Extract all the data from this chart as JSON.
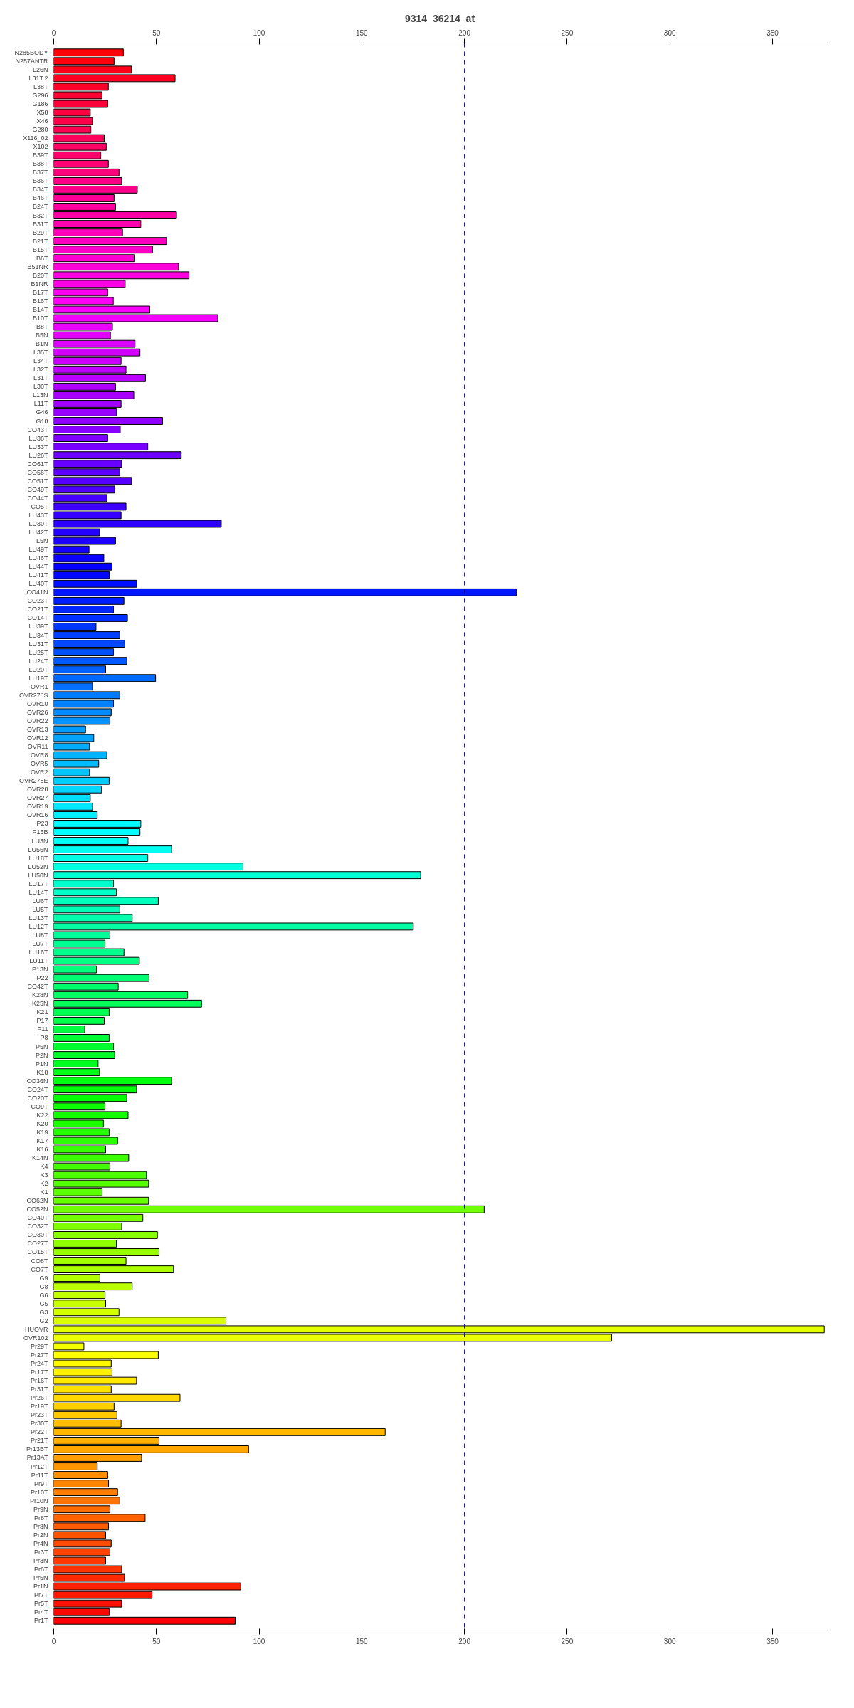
{
  "chart_data": {
    "type": "bar",
    "title": "9314_36214_at",
    "orientation": "horizontal",
    "categories": [
      "N285BODY",
      "N257ANTR",
      "L26N",
      "L31T.2",
      "L38T",
      "G296",
      "G186",
      "X58",
      "X46",
      "G280",
      "X116_02",
      "X102",
      "B39T",
      "B38T",
      "B37T",
      "B36T",
      "B34T",
      "B46T",
      "B24T",
      "B32T",
      "B31T",
      "B29T",
      "B21T",
      "B15T",
      "B6T",
      "B51NR",
      "B20T",
      "B1NR",
      "B17T",
      "B16T",
      "B14T",
      "B10T",
      "B8T",
      "B5N",
      "B1N",
      "L35T",
      "L34T",
      "L32T",
      "L31T",
      "L30T",
      "L13N",
      "L11T",
      "G46",
      "G18",
      "CO43T",
      "LU36T",
      "LU33T",
      "LU26T",
      "CO61T",
      "CO56T",
      "CO51T",
      "CO49T",
      "CO44T",
      "CO5T",
      "LU43T",
      "LU30T",
      "LU42T",
      "L5N",
      "LU49T",
      "LU46T",
      "LU44T",
      "LU41T",
      "LU40T",
      "CO41N",
      "CO23T",
      "CO21T",
      "CO14T",
      "LU39T",
      "LU34T",
      "LU31T",
      "LU25T",
      "LU24T",
      "LU20T",
      "LU19T",
      "OVR1",
      "OVR278S",
      "OVR10",
      "OVR26",
      "OVR22",
      "OVR13",
      "OVR12",
      "OVR11",
      "OVR8",
      "OVR5",
      "OVR2",
      "OVR278E",
      "OVR28",
      "OVR27",
      "OVR19",
      "OVR16",
      "P23",
      "P16B",
      "LU3N",
      "LU55N",
      "LU18T",
      "LU52N",
      "LU50N",
      "LU17T",
      "LU14T",
      "LU6T",
      "LU5T",
      "LU13T",
      "LU12T",
      "LU8T",
      "LU7T",
      "LU16T",
      "LU11T",
      "P13N",
      "P22",
      "CO42T",
      "K28N",
      "K25N",
      "K21",
      "P17",
      "P11",
      "P8",
      "P5N",
      "P2N",
      "P1N",
      "K18",
      "CO36N",
      "CO24T",
      "CO20T",
      "CO9T",
      "K22",
      "K20",
      "K19",
      "K17",
      "K16",
      "K14N",
      "K4",
      "K3",
      "K2",
      "K1",
      "CO62N",
      "CO52N",
      "CO40T",
      "CO32T",
      "CO30T",
      "CO27T",
      "CO15T",
      "CO8T",
      "CO7T",
      "G9",
      "G8",
      "G6",
      "G5",
      "G3",
      "G2",
      "HUOVR",
      "OVR102",
      "Pr29T",
      "Pr27T",
      "Pr24T",
      "Pr17T",
      "Pr16T",
      "Pr31T",
      "Pr26T",
      "Pr19T",
      "Pr23T",
      "Pr30T",
      "Pr22T",
      "Pr21T",
      "Pr13BT",
      "Pr13AT",
      "Pr12T",
      "Pr11T",
      "Pr9T",
      "Pr10T",
      "Pr10N",
      "Pr9N",
      "Pr8T",
      "Pr8N",
      "Pr2N",
      "Pr4N",
      "Pr3T",
      "Pr3N",
      "Pr6T",
      "Pr5N",
      "Pr1N",
      "Pr7T",
      "Pr5T",
      "Pr4T",
      "Pr1T"
    ],
    "values": [
      33.9,
      29.4,
      37.9,
      59.1,
      26.6,
      23.5,
      26.3,
      17.8,
      18.8,
      18.1,
      24.6,
      25.6,
      22.9,
      26.6,
      31.8,
      33.1,
      40.7,
      29.4,
      30.1,
      59.8,
      42.4,
      33.5,
      54.9,
      48.1,
      39.2,
      60.8,
      65.9,
      34.8,
      26.3,
      29.0,
      46.8,
      79.9,
      28.6,
      27.6,
      39.6,
      42.0,
      32.8,
      35.2,
      44.7,
      30.1,
      39.0,
      32.8,
      30.5,
      53.0,
      32.4,
      26.3,
      45.8,
      62.1,
      33.1,
      32.2,
      37.9,
      29.7,
      25.9,
      35.2,
      32.8,
      81.6,
      22.3,
      30.1,
      17.2,
      24.4,
      28.4,
      27.0,
      40.3,
      225.2,
      34.2,
      29.1,
      35.9,
      20.6,
      32.2,
      34.6,
      29.1,
      35.6,
      25.3,
      49.6,
      18.9,
      32.2,
      29.1,
      28.0,
      27.4,
      15.5,
      19.5,
      17.4,
      25.9,
      21.9,
      17.4,
      27.0,
      23.3,
      17.8,
      18.9,
      21.2,
      42.4,
      42.0,
      36.2,
      57.4,
      45.8,
      92.2,
      178.7,
      29.1,
      30.5,
      50.9,
      32.2,
      38.2,
      175.1,
      27.4,
      25.0,
      34.2,
      41.7,
      20.8,
      46.4,
      31.4,
      65.2,
      72.0,
      27.0,
      24.6,
      15.1,
      27.0,
      29.1,
      29.7,
      21.6,
      22.3,
      57.4,
      40.3,
      35.6,
      25.0,
      36.2,
      24.2,
      27.0,
      31.1,
      25.3,
      36.5,
      27.4,
      45.1,
      46.2,
      23.6,
      46.2,
      209.6,
      43.4,
      33.1,
      50.5,
      30.5,
      51.3,
      35.2,
      58.3,
      22.5,
      38.2,
      25.0,
      25.3,
      31.8,
      83.9,
      375.2,
      271.7,
      14.7,
      50.9,
      28.0,
      28.4,
      40.3,
      28.0,
      61.5,
      29.4,
      30.8,
      32.8,
      161.4,
      51.3,
      94.9,
      42.8,
      21.2,
      26.3,
      26.7,
      31.1,
      32.2,
      27.4,
      44.5,
      26.7,
      25.3,
      28.0,
      27.4,
      25.3,
      33.1,
      34.5,
      91.1,
      47.9,
      33.1,
      27.0,
      88.4
    ],
    "colors": [
      "#ff0008",
      "#ff0011",
      "#ff0019",
      "#ff0021",
      "#ff002a",
      "#ff0032",
      "#ff003a",
      "#ff0043",
      "#ff004b",
      "#ff0053",
      "#ff005b",
      "#ff0064",
      "#ff006c",
      "#ff0074",
      "#ff007d",
      "#ff0085",
      "#ff008d",
      "#ff0096",
      "#ff009e",
      "#ff00a6",
      "#ff00af",
      "#ff00b7",
      "#ff00bf",
      "#ff00c8",
      "#ff00d0",
      "#ff00d8",
      "#ff00e1",
      "#ff00e9",
      "#ff00f1",
      "#ff00f9",
      "#fc00ff",
      "#f400ff",
      "#ec00ff",
      "#e300ff",
      "#db00ff",
      "#d300ff",
      "#ca00ff",
      "#c200ff",
      "#ba00ff",
      "#b100ff",
      "#a900ff",
      "#a100ff",
      "#9800ff",
      "#9000ff",
      "#8800ff",
      "#8000ff",
      "#7700ff",
      "#6f00ff",
      "#6700ff",
      "#5e00ff",
      "#5600ff",
      "#4e00ff",
      "#4500ff",
      "#3d00ff",
      "#3500ff",
      "#2c00ff",
      "#2400ff",
      "#1c00ff",
      "#1300ff",
      "#0b00ff",
      "#0300ff",
      "#0006ff",
      "#000eff",
      "#0016ff",
      "#001eff",
      "#0027ff",
      "#002fff",
      "#0037ff",
      "#0040ff",
      "#0048ff",
      "#0050ff",
      "#0059ff",
      "#0061ff",
      "#0069ff",
      "#0072ff",
      "#007aff",
      "#0082ff",
      "#008bff",
      "#0093ff",
      "#009bff",
      "#00a4ff",
      "#00acff",
      "#00b4ff",
      "#00bcff",
      "#00c5ff",
      "#00cdff",
      "#00d5ff",
      "#00deff",
      "#00e6ff",
      "#00eeff",
      "#00f7ff",
      "#00ffff",
      "#00fff7",
      "#00ffee",
      "#00ffe6",
      "#00ffde",
      "#00ffd5",
      "#00ffcd",
      "#00ffc5",
      "#00ffbc",
      "#00ffb4",
      "#00ffac",
      "#00ffa4",
      "#00ff9b",
      "#00ff93",
      "#00ff8b",
      "#00ff82",
      "#00ff7a",
      "#00ff72",
      "#00ff69",
      "#00ff61",
      "#00ff59",
      "#00ff50",
      "#00ff48",
      "#00ff40",
      "#00ff37",
      "#00ff2f",
      "#00ff27",
      "#00ff1e",
      "#00ff16",
      "#00ff0e",
      "#00ff06",
      "#03ff00",
      "#0bff00",
      "#13ff00",
      "#1cff00",
      "#24ff00",
      "#2cff00",
      "#35ff00",
      "#3dff00",
      "#45ff00",
      "#4eff00",
      "#56ff00",
      "#5eff00",
      "#67ff00",
      "#6fff00",
      "#77ff00",
      "#80ff00",
      "#88ff00",
      "#90ff00",
      "#98ff00",
      "#a1ff00",
      "#a9ff00",
      "#b1ff00",
      "#baff00",
      "#c2ff00",
      "#caff00",
      "#d3ff00",
      "#dbff00",
      "#e3ff00",
      "#ecff00",
      "#f4ff00",
      "#fcff00",
      "#fff900",
      "#fff100",
      "#ffe900",
      "#ffe100",
      "#ffd800",
      "#ffd000",
      "#ffc800",
      "#ffbf00",
      "#ffb700",
      "#ffaf00",
      "#ffa600",
      "#ff9e00",
      "#ff9600",
      "#ff8d00",
      "#ff8500",
      "#ff7d00",
      "#ff7400",
      "#ff6c00",
      "#ff6400",
      "#ff5b00",
      "#ff5300",
      "#ff4b00",
      "#ff4300",
      "#ff3a00",
      "#ff3200",
      "#ff2a00",
      "#ff2100",
      "#ff1900",
      "#ff1100",
      "#ff0800",
      "#ff0000"
    ],
    "xlim": [
      0,
      376
    ],
    "xticks": [
      0,
      50,
      100,
      150,
      200,
      250,
      300,
      350
    ],
    "x2lim": [
      0,
      376
    ],
    "x2ticks": [
      0,
      50,
      100,
      150,
      200,
      250,
      300,
      350
    ],
    "ref_lines": [
      {
        "axis": "x",
        "value": 200,
        "color": "#00008b",
        "line_style": "dashed"
      }
    ]
  }
}
